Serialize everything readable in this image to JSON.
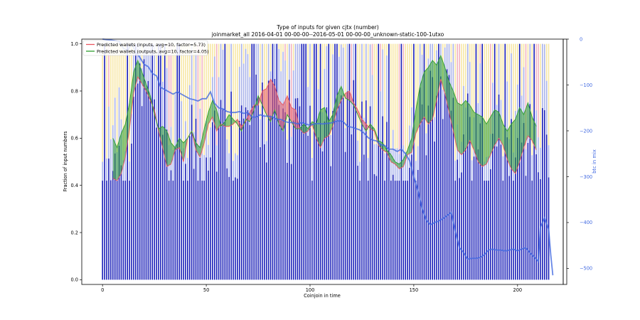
{
  "chart_data": {
    "type": "bar",
    "title": "Type of inputs for given cjtx (number)",
    "subtitle": "joinmarket_all 2016-04-01 00-00-00--2016-05-01 00-00-00_unknown-static-100-1utxo",
    "xlabel": "Coinjoin in time",
    "ylabel": "Fraction of input numbers",
    "y2label": "btc in mix",
    "xlim": [
      -10,
      222
    ],
    "ylim": [
      -0.02,
      1.02
    ],
    "y2lim": [
      -535,
      0
    ],
    "xticks": [
      "0",
      "50",
      "100",
      "150",
      "200"
    ],
    "yticks": [
      "0.0",
      "0.2",
      "0.4",
      "0.6",
      "0.8",
      "1.0"
    ],
    "y2ticks": [
      "0",
      "−100",
      "−200",
      "−300",
      "−400",
      "−500"
    ],
    "y2tick_values": [
      0,
      -100,
      -200,
      -300,
      -400,
      -500
    ],
    "xtick_values": [
      0,
      50,
      100,
      150,
      200
    ],
    "ytick_values": [
      0,
      0.2,
      0.4,
      0.6,
      0.8,
      1.0
    ],
    "legend_position": "top-left",
    "series": [
      {
        "name": "Predicted wallets (inputs, avg=10, factor=5.73)",
        "color": "#e8555f",
        "points": [
          [
            5,
            0.43
          ],
          [
            7,
            0.42
          ],
          [
            9,
            0.45
          ],
          [
            11,
            0.52
          ],
          [
            13,
            0.64
          ],
          [
            15,
            0.79
          ],
          [
            17,
            0.86
          ],
          [
            19,
            0.83
          ],
          [
            21,
            0.8
          ],
          [
            23,
            0.76
          ],
          [
            25,
            0.72
          ],
          [
            27,
            0.63
          ],
          [
            29,
            0.56
          ],
          [
            31,
            0.48
          ],
          [
            33,
            0.49
          ],
          [
            35,
            0.55
          ],
          [
            37,
            0.56
          ],
          [
            39,
            0.5
          ],
          [
            41,
            0.6
          ],
          [
            43,
            0.63
          ],
          [
            45,
            0.55
          ],
          [
            47,
            0.52
          ],
          [
            49,
            0.58
          ],
          [
            51,
            0.66
          ],
          [
            53,
            0.69
          ],
          [
            55,
            0.63
          ],
          [
            57,
            0.66
          ],
          [
            59,
            0.65
          ],
          [
            61,
            0.65
          ],
          [
            63,
            0.66
          ],
          [
            65,
            0.68
          ],
          [
            67,
            0.65
          ],
          [
            69,
            0.67
          ],
          [
            71,
            0.71
          ],
          [
            73,
            0.74
          ],
          [
            75,
            0.74
          ],
          [
            77,
            0.8
          ],
          [
            79,
            0.81
          ],
          [
            81,
            0.85
          ],
          [
            83,
            0.82
          ],
          [
            85,
            0.76
          ],
          [
            87,
            0.74
          ],
          [
            89,
            0.78
          ],
          [
            91,
            0.73
          ],
          [
            93,
            0.72
          ],
          [
            95,
            0.64
          ],
          [
            97,
            0.62
          ],
          [
            99,
            0.63
          ],
          [
            101,
            0.66
          ],
          [
            103,
            0.6
          ],
          [
            105,
            0.56
          ],
          [
            107,
            0.6
          ],
          [
            109,
            0.61
          ],
          [
            111,
            0.65
          ],
          [
            113,
            0.72
          ],
          [
            115,
            0.76
          ],
          [
            117,
            0.79
          ],
          [
            119,
            0.8
          ],
          [
            121,
            0.75
          ],
          [
            123,
            0.72
          ],
          [
            125,
            0.68
          ],
          [
            127,
            0.66
          ],
          [
            129,
            0.64
          ],
          [
            131,
            0.63
          ],
          [
            133,
            0.57
          ],
          [
            135,
            0.55
          ],
          [
            137,
            0.54
          ],
          [
            139,
            0.5
          ],
          [
            141,
            0.49
          ],
          [
            143,
            0.47
          ],
          [
            145,
            0.48
          ],
          [
            147,
            0.53
          ],
          [
            149,
            0.54
          ],
          [
            151,
            0.62
          ],
          [
            153,
            0.66
          ],
          [
            155,
            0.69
          ],
          [
            157,
            0.66
          ],
          [
            159,
            0.68
          ],
          [
            161,
            0.76
          ],
          [
            163,
            0.85
          ],
          [
            165,
            0.79
          ],
          [
            167,
            0.71
          ],
          [
            169,
            0.63
          ],
          [
            171,
            0.55
          ],
          [
            173,
            0.53
          ],
          [
            175,
            0.55
          ],
          [
            177,
            0.59
          ],
          [
            179,
            0.55
          ],
          [
            181,
            0.5
          ],
          [
            183,
            0.48
          ],
          [
            185,
            0.49
          ],
          [
            187,
            0.53
          ],
          [
            189,
            0.57
          ],
          [
            191,
            0.6
          ],
          [
            193,
            0.57
          ],
          [
            195,
            0.51
          ],
          [
            197,
            0.47
          ],
          [
            199,
            0.45
          ],
          [
            201,
            0.5
          ],
          [
            203,
            0.56
          ],
          [
            205,
            0.61
          ],
          [
            207,
            0.59
          ],
          [
            209,
            0.55
          ]
        ]
      },
      {
        "name": "Predicted wallets (outputs, avg=10, factor=4.05)",
        "color": "#2e9e2e",
        "points": [
          [
            5,
            0.6
          ],
          [
            7,
            0.56
          ],
          [
            9,
            0.62
          ],
          [
            11,
            0.66
          ],
          [
            13,
            0.75
          ],
          [
            15,
            0.88
          ],
          [
            17,
            0.93
          ],
          [
            19,
            0.88
          ],
          [
            21,
            0.83
          ],
          [
            23,
            0.78
          ],
          [
            25,
            0.7
          ],
          [
            27,
            0.64
          ],
          [
            29,
            0.65
          ],
          [
            31,
            0.63
          ],
          [
            33,
            0.58
          ],
          [
            35,
            0.56
          ],
          [
            37,
            0.6
          ],
          [
            39,
            0.58
          ],
          [
            41,
            0.6
          ],
          [
            43,
            0.63
          ],
          [
            45,
            0.58
          ],
          [
            47,
            0.56
          ],
          [
            49,
            0.64
          ],
          [
            51,
            0.71
          ],
          [
            53,
            0.76
          ],
          [
            55,
            0.72
          ],
          [
            57,
            0.65
          ],
          [
            59,
            0.67
          ],
          [
            61,
            0.7
          ],
          [
            63,
            0.68
          ],
          [
            65,
            0.66
          ],
          [
            67,
            0.63
          ],
          [
            69,
            0.68
          ],
          [
            71,
            0.67
          ],
          [
            73,
            0.72
          ],
          [
            75,
            0.78
          ],
          [
            77,
            0.74
          ],
          [
            79,
            0.7
          ],
          [
            81,
            0.67
          ],
          [
            83,
            0.72
          ],
          [
            85,
            0.66
          ],
          [
            87,
            0.63
          ],
          [
            89,
            0.7
          ],
          [
            91,
            0.67
          ],
          [
            93,
            0.64
          ],
          [
            95,
            0.64
          ],
          [
            97,
            0.66
          ],
          [
            99,
            0.64
          ],
          [
            101,
            0.67
          ],
          [
            103,
            0.66
          ],
          [
            105,
            0.72
          ],
          [
            107,
            0.73
          ],
          [
            109,
            0.67
          ],
          [
            111,
            0.7
          ],
          [
            113,
            0.78
          ],
          [
            115,
            0.82
          ],
          [
            117,
            0.77
          ],
          [
            119,
            0.76
          ],
          [
            121,
            0.74
          ],
          [
            123,
            0.7
          ],
          [
            125,
            0.66
          ],
          [
            127,
            0.63
          ],
          [
            129,
            0.66
          ],
          [
            131,
            0.64
          ],
          [
            133,
            0.59
          ],
          [
            135,
            0.58
          ],
          [
            137,
            0.55
          ],
          [
            139,
            0.53
          ],
          [
            141,
            0.5
          ],
          [
            143,
            0.49
          ],
          [
            145,
            0.51
          ],
          [
            147,
            0.55
          ],
          [
            149,
            0.6
          ],
          [
            151,
            0.72
          ],
          [
            153,
            0.82
          ],
          [
            155,
            0.88
          ],
          [
            157,
            0.9
          ],
          [
            159,
            0.93
          ],
          [
            161,
            0.91
          ],
          [
            163,
            0.95
          ],
          [
            165,
            0.9
          ],
          [
            167,
            0.84
          ],
          [
            169,
            0.8
          ],
          [
            171,
            0.75
          ],
          [
            173,
            0.74
          ],
          [
            175,
            0.76
          ],
          [
            177,
            0.74
          ],
          [
            179,
            0.71
          ],
          [
            181,
            0.7
          ],
          [
            183,
            0.69
          ],
          [
            185,
            0.66
          ],
          [
            187,
            0.69
          ],
          [
            189,
            0.72
          ],
          [
            191,
            0.71
          ],
          [
            193,
            0.66
          ],
          [
            195,
            0.63
          ],
          [
            197,
            0.66
          ],
          [
            199,
            0.68
          ],
          [
            201,
            0.73
          ],
          [
            203,
            0.7
          ],
          [
            205,
            0.75
          ],
          [
            207,
            0.69
          ],
          [
            209,
            0.65
          ]
        ]
      }
    ],
    "btc_in_mix": {
      "axis": "right",
      "color": "#4169e1",
      "points": [
        [
          0,
          0
        ],
        [
          4,
          -2
        ],
        [
          8,
          -5
        ],
        [
          10,
          -20
        ],
        [
          12,
          -25
        ],
        [
          14,
          -10
        ],
        [
          16,
          -28
        ],
        [
          18,
          -40
        ],
        [
          20,
          -55
        ],
        [
          22,
          -60
        ],
        [
          24,
          -75
        ],
        [
          26,
          -80
        ],
        [
          28,
          -105
        ],
        [
          30,
          -110
        ],
        [
          32,
          -115
        ],
        [
          34,
          -120
        ],
        [
          36,
          -115
        ],
        [
          38,
          -120
        ],
        [
          40,
          -125
        ],
        [
          42,
          -130
        ],
        [
          44,
          -132
        ],
        [
          46,
          -135
        ],
        [
          48,
          -130
        ],
        [
          50,
          -130
        ],
        [
          52,
          -115
        ],
        [
          54,
          -140
        ],
        [
          56,
          -150
        ],
        [
          58,
          -152
        ],
        [
          60,
          -158
        ],
        [
          62,
          -160
        ],
        [
          64,
          -160
        ],
        [
          66,
          -158
        ],
        [
          68,
          -162
        ],
        [
          70,
          -160
        ],
        [
          72,
          -170
        ],
        [
          74,
          -170
        ],
        [
          76,
          -165
        ],
        [
          78,
          -168
        ],
        [
          80,
          -168
        ],
        [
          82,
          -170
        ],
        [
          84,
          -175
        ],
        [
          86,
          -175
        ],
        [
          88,
          -180
        ],
        [
          90,
          -182
        ],
        [
          92,
          -182
        ],
        [
          94,
          -185
        ],
        [
          96,
          -182
        ],
        [
          98,
          -185
        ],
        [
          100,
          -188
        ],
        [
          102,
          -185
        ],
        [
          104,
          -184
        ],
        [
          106,
          -185
        ],
        [
          108,
          -184
        ],
        [
          110,
          -183
        ],
        [
          112,
          -180
        ],
        [
          114,
          -178
        ],
        [
          116,
          -180
        ],
        [
          118,
          -190
        ],
        [
          120,
          -192
        ],
        [
          122,
          -195
        ],
        [
          124,
          -198
        ],
        [
          126,
          -205
        ],
        [
          128,
          -215
        ],
        [
          130,
          -220
        ],
        [
          132,
          -222
        ],
        [
          134,
          -230
        ],
        [
          136,
          -232
        ],
        [
          138,
          -240
        ],
        [
          140,
          -240
        ],
        [
          142,
          -245
        ],
        [
          144,
          -240
        ],
        [
          146,
          -250
        ],
        [
          148,
          -265
        ],
        [
          150,
          -300
        ],
        [
          152,
          -330
        ],
        [
          154,
          -370
        ],
        [
          156,
          -395
        ],
        [
          158,
          -405
        ],
        [
          160,
          -400
        ],
        [
          162,
          -397
        ],
        [
          164,
          -392
        ],
        [
          166,
          -385
        ],
        [
          168,
          -378
        ],
        [
          170,
          -420
        ],
        [
          172,
          -455
        ],
        [
          174,
          -465
        ],
        [
          176,
          -480
        ],
        [
          178,
          -478
        ],
        [
          180,
          -478
        ],
        [
          182,
          -476
        ],
        [
          184,
          -470
        ],
        [
          186,
          -460
        ],
        [
          188,
          -458
        ],
        [
          190,
          -460
        ],
        [
          192,
          -460
        ],
        [
          194,
          -462
        ],
        [
          196,
          -460
        ],
        [
          198,
          -458
        ],
        [
          200,
          -462
        ],
        [
          202,
          -458
        ],
        [
          204,
          -455
        ],
        [
          206,
          -466
        ],
        [
          208,
          -475
        ],
        [
          210,
          -485
        ],
        [
          211,
          -410
        ],
        [
          213,
          -390
        ],
        [
          215,
          -415
        ],
        [
          216,
          -470
        ],
        [
          217,
          -515
        ]
      ]
    },
    "bars": {
      "note": "stacked fraction columns, one per coinjoin (0-215); dark blue lower segment, light blue/yellow/pink upper segments",
      "color_low": "#1a1fb8",
      "color_mid": "#aab3ea",
      "color_high": "#f7e7a6",
      "color_pink": "#f3b3c0",
      "count": 216
    }
  }
}
